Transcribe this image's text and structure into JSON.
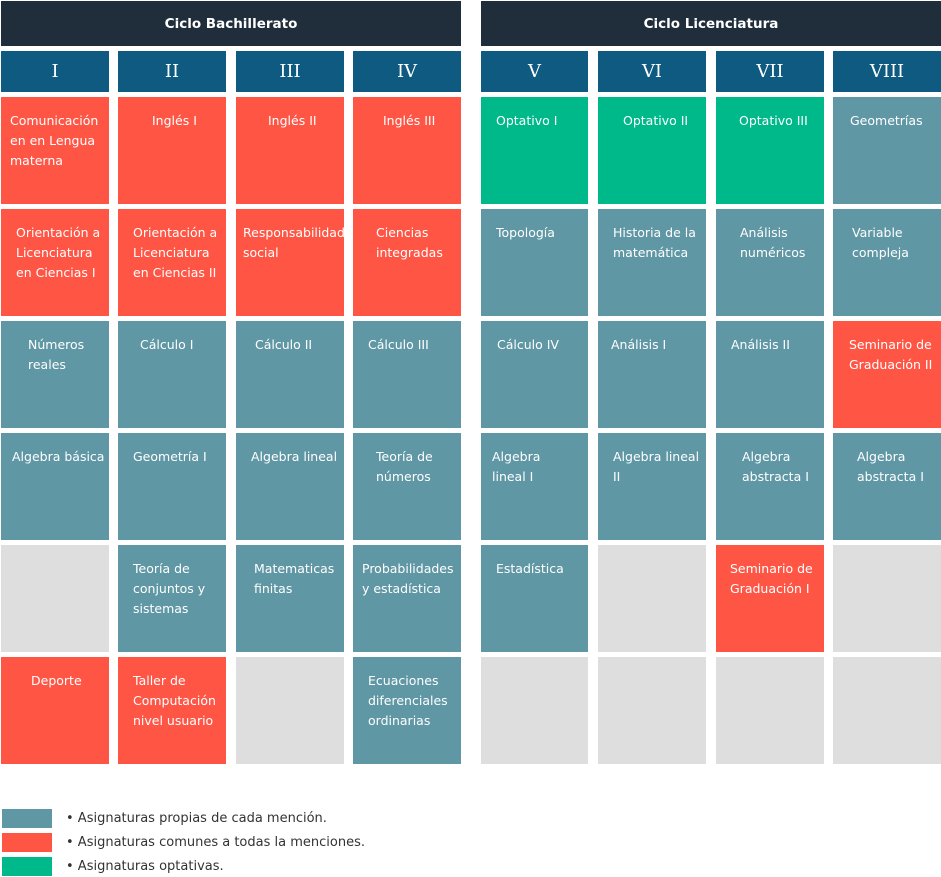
{
  "cycles": {
    "bachillerato": "Ciclo Bachillerato",
    "licenciatura": "Ciclo Licenciatura"
  },
  "semesters": [
    "I",
    "II",
    "III",
    "IV",
    "V",
    "VI",
    "VII",
    "VIII"
  ],
  "colors": {
    "header": "#1f2e3a",
    "semester": "#0f5a80",
    "propia": "#5f97a5",
    "comun": "#fe5545",
    "optativa": "#00b98a",
    "empty": "#dedede"
  },
  "grid": [
    [
      {
        "text": "Comunicación\nen en Lengua\nmaterna",
        "type": "comun"
      },
      {
        "text": "Inglés I",
        "type": "comun"
      },
      {
        "text": "Inglés II",
        "type": "comun"
      },
      {
        "text": "Inglés III",
        "type": "comun"
      },
      {
        "text": "Optativo I",
        "type": "optativa"
      },
      {
        "text": "Optativo II",
        "type": "optativa"
      },
      {
        "text": "Optativo III",
        "type": "optativa"
      },
      {
        "text": "Geometrías",
        "type": "propia"
      }
    ],
    [
      {
        "text": "Orientación a\nLicenciatura\nen Ciencias I",
        "type": "comun"
      },
      {
        "text": "Orientación a\nLicenciatura\nen Ciencias II",
        "type": "comun"
      },
      {
        "text": "Responsabilidad\nsocial",
        "type": "comun"
      },
      {
        "text": "Ciencias\nintegradas",
        "type": "comun"
      },
      {
        "text": "Topología",
        "type": "propia"
      },
      {
        "text": "Historia de la\nmatemática",
        "type": "propia"
      },
      {
        "text": "Análisis\nnuméricos",
        "type": "propia"
      },
      {
        "text": "Variable\ncompleja",
        "type": "propia"
      }
    ],
    [
      {
        "text": "Números\nreales",
        "type": "propia"
      },
      {
        "text": "Cálculo I",
        "type": "propia"
      },
      {
        "text": "Cálculo II",
        "type": "propia"
      },
      {
        "text": "Cálculo III",
        "type": "propia"
      },
      {
        "text": "Cálculo IV",
        "type": "propia"
      },
      {
        "text": "Análisis I",
        "type": "propia"
      },
      {
        "text": "Análisis II",
        "type": "propia"
      },
      {
        "text": "Seminario de\nGraduación II",
        "type": "comun"
      }
    ],
    [
      {
        "text": "Algebra básica",
        "type": "propia"
      },
      {
        "text": "Geometría I",
        "type": "propia"
      },
      {
        "text": "Algebra lineal",
        "type": "propia"
      },
      {
        "text": "Teoría de\nnúmeros",
        "type": "propia"
      },
      {
        "text": "Algebra\nlineal I",
        "type": "propia"
      },
      {
        "text": "Algebra lineal\nII",
        "type": "propia"
      },
      {
        "text": "Algebra\nabstracta I",
        "type": "propia"
      },
      {
        "text": "Algebra\nabstracta I",
        "type": "propia"
      }
    ],
    [
      {
        "text": "",
        "type": "empty"
      },
      {
        "text": "Teoría de\nconjuntos y\nsistemas",
        "type": "propia"
      },
      {
        "text": "Matematicas\nfinitas",
        "type": "propia"
      },
      {
        "text": "Probabilidades\ny estadística",
        "type": "propia"
      },
      {
        "text": "Estadística",
        "type": "propia"
      },
      {
        "text": "",
        "type": "empty"
      },
      {
        "text": "Seminario de\nGraduación I",
        "type": "comun"
      },
      {
        "text": "",
        "type": "empty"
      }
    ],
    [
      {
        "text": "Deporte",
        "type": "comun"
      },
      {
        "text": "Taller de\nComputación\nnivel usuario",
        "type": "comun"
      },
      {
        "text": "",
        "type": "empty"
      },
      {
        "text": "Ecuaciones\ndiferenciales\nordinarias",
        "type": "propia"
      },
      {
        "text": "",
        "type": "empty"
      },
      {
        "text": "",
        "type": "empty"
      },
      {
        "text": "",
        "type": "empty"
      },
      {
        "text": "",
        "type": "empty"
      }
    ]
  ],
  "legend": [
    {
      "text": "• Asignaturas propias de cada mención.",
      "type": "propia"
    },
    {
      "text": "• Asignaturas comunes a todas la menciones.",
      "type": "comun"
    },
    {
      "text": "• Asignaturas optativas.",
      "type": "optativa"
    }
  ]
}
